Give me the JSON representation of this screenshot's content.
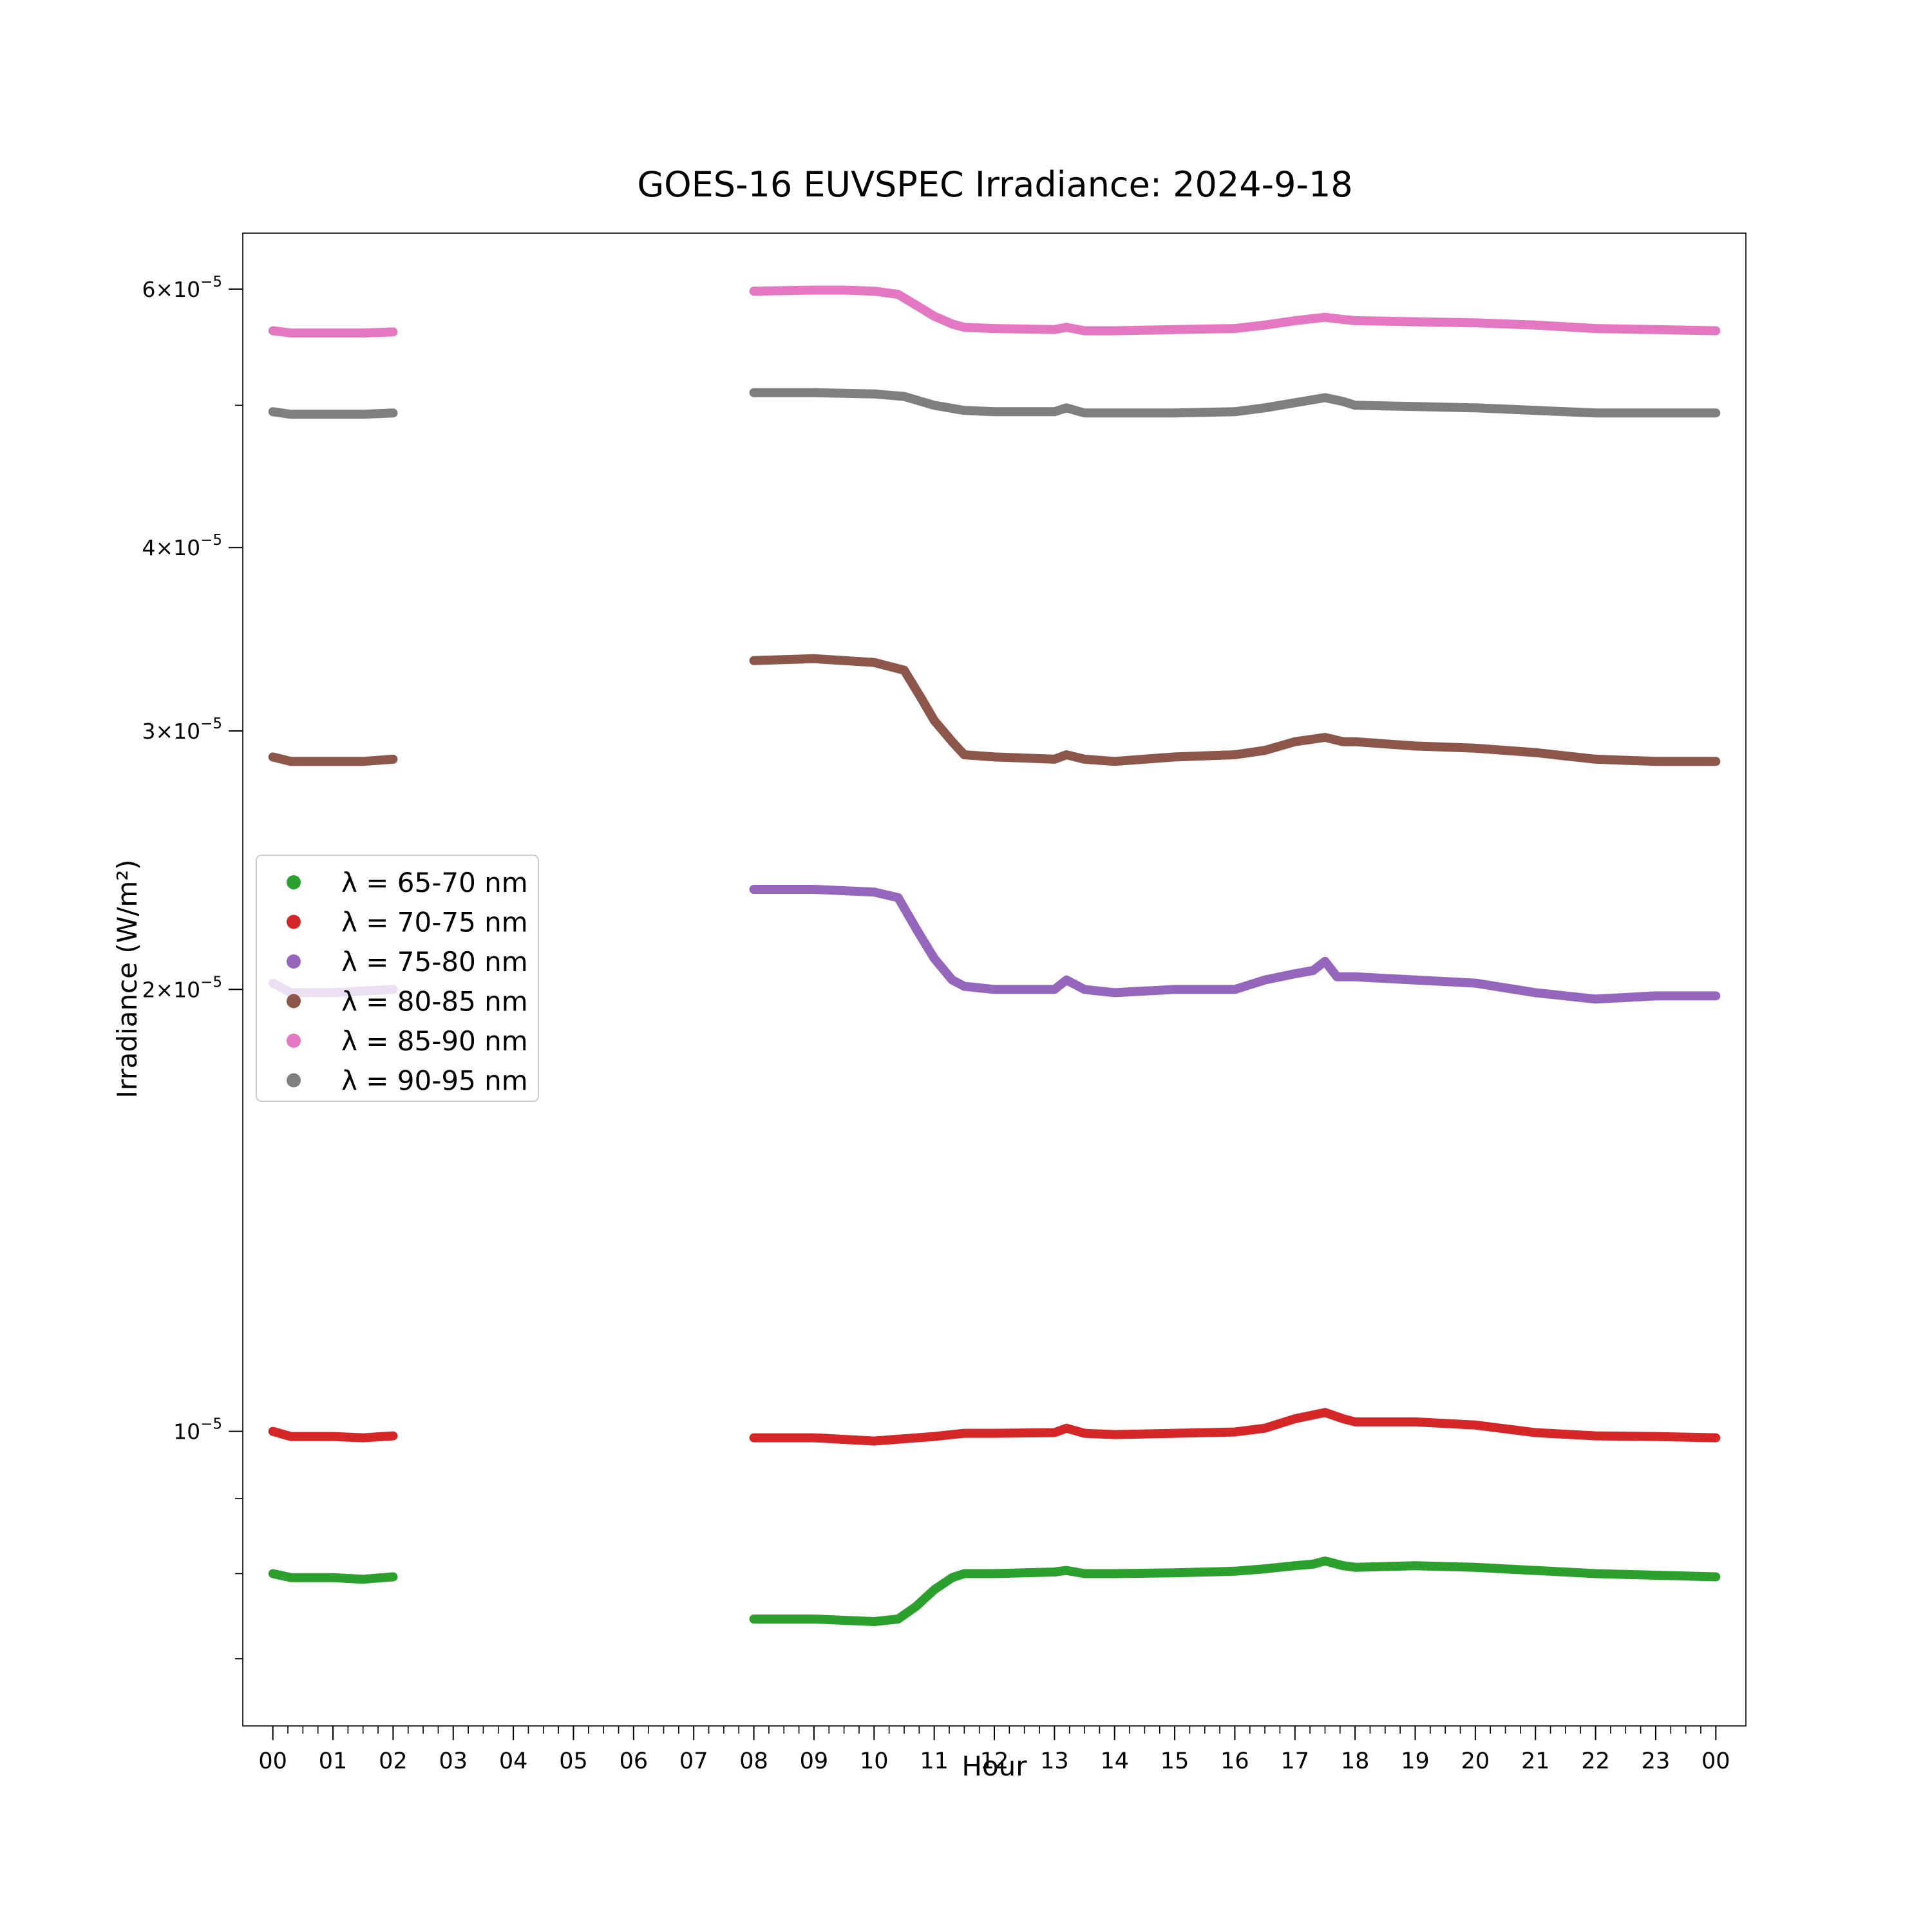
{
  "chart_data": {
    "type": "line",
    "title": "GOES-16 EUVSPEC Irradiance: 2024-9-18",
    "xlabel": "Hour",
    "ylabel": "Irradiance (W/m²)",
    "yscale": "log",
    "xlim": [
      -0.5,
      24.5
    ],
    "ylim": [
      6.3e-06,
      6.55e-05
    ],
    "grid": false,
    "legend_position": "center-left",
    "x_ticks": [
      0,
      1,
      2,
      3,
      4,
      5,
      6,
      7,
      8,
      9,
      10,
      11,
      12,
      13,
      14,
      15,
      16,
      17,
      18,
      19,
      20,
      21,
      22,
      23,
      24
    ],
    "x_tick_labels": [
      "00",
      "01",
      "02",
      "03",
      "04",
      "05",
      "06",
      "07",
      "08",
      "09",
      "10",
      "11",
      "12",
      "13",
      "14",
      "15",
      "16",
      "17",
      "18",
      "19",
      "20",
      "21",
      "22",
      "23",
      "00"
    ],
    "x_minor_step": 0.25,
    "y_major_ticks": [
      {
        "value": 1e-05,
        "mantissa": "",
        "exponent": "−5"
      },
      {
        "value": 2e-05,
        "mantissa": "2",
        "exponent": "−5"
      },
      {
        "value": 3e-05,
        "mantissa": "3",
        "exponent": "−5"
      },
      {
        "value": 4e-05,
        "mantissa": "4",
        "exponent": "−5"
      },
      {
        "value": 6e-05,
        "mantissa": "6",
        "exponent": "−5"
      }
    ],
    "y_minor_ticks": [
      7e-06,
      8e-06,
      9e-06,
      5e-05
    ],
    "series": [
      {
        "name": "λ = 65-70 nm",
        "color": "#2ca02c",
        "segments": [
          [
            [
              0,
              8e-06
            ],
            [
              0.3,
              7.95e-06
            ],
            [
              1,
              7.95e-06
            ],
            [
              1.5,
              7.93e-06
            ],
            [
              2,
              7.96e-06
            ]
          ],
          [
            [
              8,
              7.45e-06
            ],
            [
              9,
              7.45e-06
            ],
            [
              10,
              7.42e-06
            ],
            [
              10.4,
              7.45e-06
            ],
            [
              10.7,
              7.6e-06
            ],
            [
              11,
              7.8e-06
            ],
            [
              11.3,
              7.95e-06
            ],
            [
              11.5,
              8e-06
            ],
            [
              12,
              8e-06
            ],
            [
              13,
              8.02e-06
            ],
            [
              13.2,
              8.04e-06
            ],
            [
              13.5,
              8e-06
            ],
            [
              14,
              8e-06
            ],
            [
              15,
              8.01e-06
            ],
            [
              16,
              8.03e-06
            ],
            [
              16.5,
              8.06e-06
            ],
            [
              17,
              8.1e-06
            ],
            [
              17.3,
              8.12e-06
            ],
            [
              17.5,
              8.16e-06
            ],
            [
              17.8,
              8.1e-06
            ],
            [
              18,
              8.08e-06
            ],
            [
              19,
              8.1e-06
            ],
            [
              20,
              8.08e-06
            ],
            [
              21,
              8.04e-06
            ],
            [
              22,
              8e-06
            ],
            [
              23,
              7.98e-06
            ],
            [
              24,
              7.96e-06
            ]
          ]
        ]
      },
      {
        "name": "λ = 70-75 nm",
        "color": "#d62728",
        "segments": [
          [
            [
              0,
              1e-05
            ],
            [
              0.3,
              9.92e-06
            ],
            [
              1,
              9.92e-06
            ],
            [
              1.5,
              9.9e-06
            ],
            [
              2,
              9.93e-06
            ]
          ],
          [
            [
              8,
              9.9e-06
            ],
            [
              9,
              9.9e-06
            ],
            [
              10,
              9.85e-06
            ],
            [
              11,
              9.92e-06
            ],
            [
              11.5,
              9.97e-06
            ],
            [
              12,
              9.97e-06
            ],
            [
              13,
              9.98e-06
            ],
            [
              13.2,
              1.005e-05
            ],
            [
              13.5,
              9.97e-06
            ],
            [
              14,
              9.95e-06
            ],
            [
              15,
              9.97e-06
            ],
            [
              16,
              9.99e-06
            ],
            [
              16.5,
              1.005e-05
            ],
            [
              17,
              1.02e-05
            ],
            [
              17.5,
              1.03e-05
            ],
            [
              17.8,
              1.02e-05
            ],
            [
              18,
              1.015e-05
            ],
            [
              19,
              1.015e-05
            ],
            [
              20,
              1.01e-05
            ],
            [
              21,
              9.98e-06
            ],
            [
              22,
              9.93e-06
            ],
            [
              23,
              9.92e-06
            ],
            [
              24,
              9.9e-06
            ]
          ]
        ]
      },
      {
        "name": "λ = 75-80 nm",
        "color": "#9467bd",
        "segments": [
          [
            [
              0,
              2.02e-05
            ],
            [
              0.3,
              1.99e-05
            ],
            [
              1,
              1.99e-05
            ],
            [
              1.5,
              1.995e-05
            ],
            [
              2,
              2e-05
            ]
          ],
          [
            [
              8,
              2.34e-05
            ],
            [
              9,
              2.34e-05
            ],
            [
              10,
              2.33e-05
            ],
            [
              10.4,
              2.31e-05
            ],
            [
              10.7,
              2.2e-05
            ],
            [
              11,
              2.1e-05
            ],
            [
              11.3,
              2.03e-05
            ],
            [
              11.5,
              2.01e-05
            ],
            [
              12,
              2e-05
            ],
            [
              13,
              2e-05
            ],
            [
              13.2,
              2.03e-05
            ],
            [
              13.5,
              2e-05
            ],
            [
              14,
              1.99e-05
            ],
            [
              15,
              2e-05
            ],
            [
              16,
              2e-05
            ],
            [
              16.5,
              2.03e-05
            ],
            [
              17,
              2.05e-05
            ],
            [
              17.3,
              2.06e-05
            ],
            [
              17.5,
              2.09e-05
            ],
            [
              17.7,
              2.04e-05
            ],
            [
              18,
              2.04e-05
            ],
            [
              19,
              2.03e-05
            ],
            [
              20,
              2.02e-05
            ],
            [
              21,
              1.99e-05
            ],
            [
              22,
              1.97e-05
            ],
            [
              23,
              1.98e-05
            ],
            [
              24,
              1.98e-05
            ]
          ]
        ]
      },
      {
        "name": "λ = 80-85 nm",
        "color": "#8c564b",
        "segments": [
          [
            [
              0,
              2.88e-05
            ],
            [
              0.3,
              2.86e-05
            ],
            [
              1,
              2.86e-05
            ],
            [
              1.5,
              2.86e-05
            ],
            [
              2,
              2.87e-05
            ]
          ],
          [
            [
              8,
              3.35e-05
            ],
            [
              9,
              3.36e-05
            ],
            [
              10,
              3.34e-05
            ],
            [
              10.5,
              3.3e-05
            ],
            [
              10.8,
              3.15e-05
            ],
            [
              11,
              3.05e-05
            ],
            [
              11.3,
              2.95e-05
            ],
            [
              11.5,
              2.89e-05
            ],
            [
              12,
              2.88e-05
            ],
            [
              13,
              2.87e-05
            ],
            [
              13.2,
              2.89e-05
            ],
            [
              13.5,
              2.87e-05
            ],
            [
              14,
              2.86e-05
            ],
            [
              15,
              2.88e-05
            ],
            [
              16,
              2.89e-05
            ],
            [
              16.5,
              2.91e-05
            ],
            [
              17,
              2.95e-05
            ],
            [
              17.5,
              2.97e-05
            ],
            [
              17.8,
              2.95e-05
            ],
            [
              18,
              2.95e-05
            ],
            [
              19,
              2.93e-05
            ],
            [
              20,
              2.92e-05
            ],
            [
              21,
              2.9e-05
            ],
            [
              22,
              2.87e-05
            ],
            [
              23,
              2.86e-05
            ],
            [
              24,
              2.86e-05
            ]
          ]
        ]
      },
      {
        "name": "λ = 85-90 nm",
        "color": "#e377c2",
        "segments": [
          [
            [
              0,
              5.62e-05
            ],
            [
              0.3,
              5.6e-05
            ],
            [
              1,
              5.6e-05
            ],
            [
              1.5,
              5.6e-05
            ],
            [
              2,
              5.61e-05
            ]
          ],
          [
            [
              8,
              5.98e-05
            ],
            [
              9,
              5.99e-05
            ],
            [
              9.5,
              5.99e-05
            ],
            [
              10,
              5.98e-05
            ],
            [
              10.4,
              5.95e-05
            ],
            [
              10.7,
              5.85e-05
            ],
            [
              11,
              5.75e-05
            ],
            [
              11.3,
              5.68e-05
            ],
            [
              11.5,
              5.65e-05
            ],
            [
              12,
              5.64e-05
            ],
            [
              13,
              5.63e-05
            ],
            [
              13.2,
              5.65e-05
            ],
            [
              13.5,
              5.62e-05
            ],
            [
              14,
              5.62e-05
            ],
            [
              15,
              5.63e-05
            ],
            [
              16,
              5.64e-05
            ],
            [
              16.5,
              5.67e-05
            ],
            [
              17,
              5.71e-05
            ],
            [
              17.5,
              5.74e-05
            ],
            [
              17.8,
              5.72e-05
            ],
            [
              18,
              5.71e-05
            ],
            [
              19,
              5.7e-05
            ],
            [
              20,
              5.69e-05
            ],
            [
              21,
              5.67e-05
            ],
            [
              22,
              5.64e-05
            ],
            [
              23,
              5.63e-05
            ],
            [
              24,
              5.62e-05
            ]
          ]
        ]
      },
      {
        "name": "λ = 90-95 nm",
        "color": "#7f7f7f",
        "segments": [
          [
            [
              0,
              4.95e-05
            ],
            [
              0.3,
              4.93e-05
            ],
            [
              1,
              4.93e-05
            ],
            [
              1.5,
              4.93e-05
            ],
            [
              2,
              4.94e-05
            ]
          ],
          [
            [
              8,
              5.1e-05
            ],
            [
              9,
              5.1e-05
            ],
            [
              10,
              5.09e-05
            ],
            [
              10.5,
              5.07e-05
            ],
            [
              11,
              5e-05
            ],
            [
              11.5,
              4.96e-05
            ],
            [
              12,
              4.95e-05
            ],
            [
              13,
              4.95e-05
            ],
            [
              13.2,
              4.98e-05
            ],
            [
              13.5,
              4.94e-05
            ],
            [
              14,
              4.94e-05
            ],
            [
              15,
              4.94e-05
            ],
            [
              16,
              4.95e-05
            ],
            [
              16.5,
              4.98e-05
            ],
            [
              17,
              5.02e-05
            ],
            [
              17.5,
              5.06e-05
            ],
            [
              17.8,
              5.03e-05
            ],
            [
              18,
              5e-05
            ],
            [
              19,
              4.99e-05
            ],
            [
              20,
              4.98e-05
            ],
            [
              21,
              4.96e-05
            ],
            [
              22,
              4.94e-05
            ],
            [
              23,
              4.94e-05
            ],
            [
              24,
              4.94e-05
            ]
          ]
        ]
      }
    ]
  }
}
